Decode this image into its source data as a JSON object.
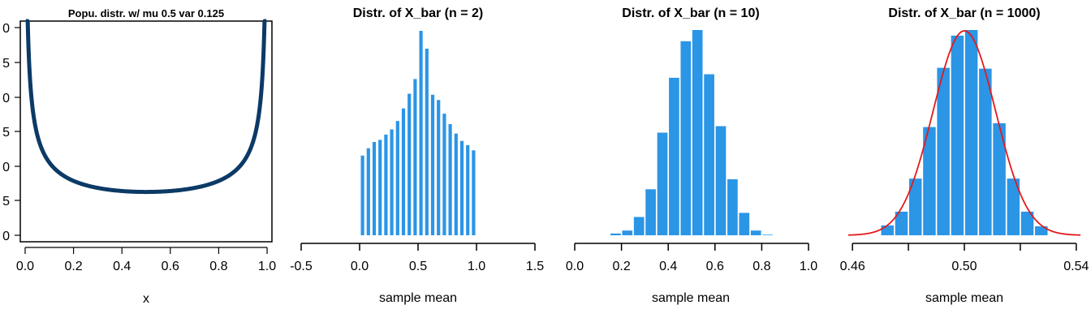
{
  "colors": {
    "bar": "#2b95e6",
    "density_line": "#0c3a66",
    "normal_curve": "#e31a1c",
    "axis": "#000000"
  },
  "chart_data": [
    {
      "type": "line",
      "title": "Popu. distr. w/ mu 0.5 var 0.125",
      "xlabel": "x",
      "ylabel": "",
      "xlim": [
        -0.02,
        1.02
      ],
      "ylim": [
        0,
        3.1
      ],
      "x_ticks": [
        "0.0",
        "0.2",
        "0.4",
        "0.6",
        "0.8",
        "1.0"
      ],
      "y_ticks_partial": [
        "0",
        "5",
        "0",
        "5",
        "0",
        "5",
        "0"
      ],
      "distribution": "Beta(0.5, 0.5)",
      "box": true
    },
    {
      "type": "bar",
      "title": "Distr. of X_bar (n = 2)",
      "xlabel": "sample mean",
      "xlim": [
        -0.5,
        1.5
      ],
      "x_ticks": [
        "-0.5",
        "0.0",
        "0.5",
        "1.0",
        "1.5"
      ],
      "bin_width": 0.05,
      "bin_starts": [
        0.0,
        0.05,
        0.1,
        0.15,
        0.2,
        0.25,
        0.3,
        0.35,
        0.4,
        0.45,
        0.5,
        0.55,
        0.6,
        0.65,
        0.7,
        0.75,
        0.8,
        0.85,
        0.9,
        0.95
      ],
      "values": [
        0.76,
        0.83,
        0.89,
        0.91,
        0.96,
        1.01,
        1.09,
        1.21,
        1.35,
        1.49,
        1.95,
        1.78,
        1.34,
        1.29,
        1.16,
        1.06,
        0.97,
        0.9,
        0.86,
        0.81
      ],
      "bar_layout": "narrow bars with gaps"
    },
    {
      "type": "bar",
      "title": "Distr. of X_bar (n = 10)",
      "xlabel": "sample mean",
      "xlim": [
        0.0,
        1.0
      ],
      "x_ticks": [
        "0.0",
        "0.2",
        "0.4",
        "0.6",
        "0.8",
        "1.0"
      ],
      "bin_width": 0.05,
      "bin_starts": [
        0.15,
        0.2,
        0.25,
        0.3,
        0.35,
        0.4,
        0.45,
        0.5,
        0.55,
        0.6,
        0.65,
        0.7,
        0.75,
        0.8
      ],
      "values": [
        0.3,
        0.8,
        3.1,
        7.8,
        17.4,
        26.7,
        32.9,
        34.8,
        27.3,
        18.5,
        9.5,
        3.8,
        0.8,
        0.1
      ]
    },
    {
      "type": "bar",
      "title": "Distr. of X_bar (n = 1000)",
      "xlabel": "sample mean",
      "xlim": [
        0.4585,
        0.5415
      ],
      "x_ticks": [
        "0.46",
        "",
        "0.50",
        "",
        "0.54"
      ],
      "x_tick_values": [
        0.46,
        0.48,
        0.5,
        0.52,
        0.54
      ],
      "bin_width": 0.005,
      "bin_starts": [
        0.47,
        0.475,
        0.48,
        0.485,
        0.49,
        0.495,
        0.5,
        0.505,
        0.51,
        0.515,
        0.52,
        0.525
      ],
      "values": [
        2.3,
        5.5,
        13.2,
        25.2,
        39.0,
        46.5,
        47.8,
        38.8,
        26.1,
        13.2,
        5.5,
        2.1
      ],
      "overlay": {
        "type": "normal",
        "mean": 0.5,
        "sd": 0.0112
      }
    }
  ]
}
